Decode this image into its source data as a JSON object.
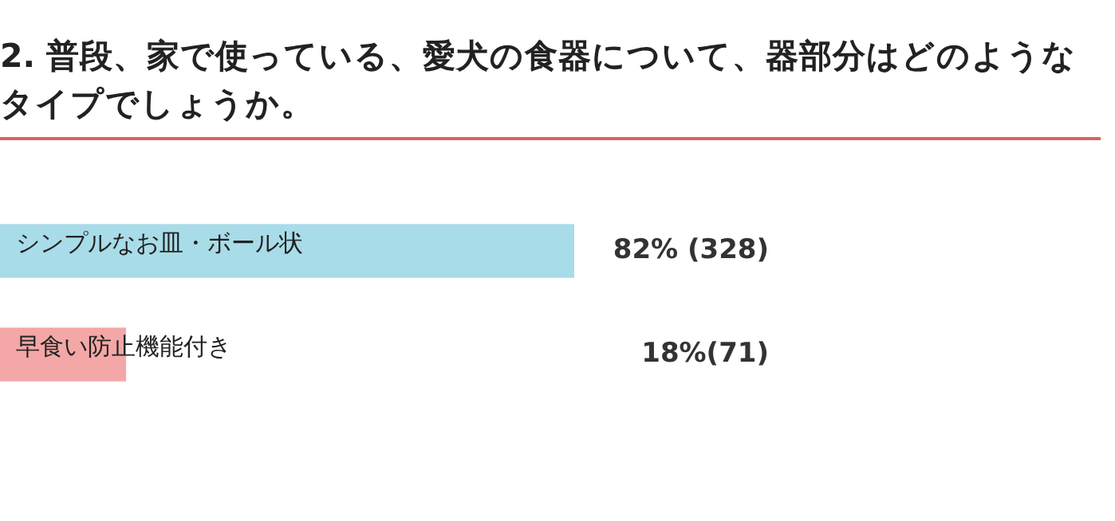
{
  "chart_data": {
    "type": "bar",
    "orientation": "horizontal",
    "title": "2. 普段、家で使っている、愛犬の食器について、器部分はどのようなタイプでしょうか。",
    "categories": [
      "シンプルなお皿・ボール状",
      "早食い防止機能付き"
    ],
    "values": [
      82,
      18
    ],
    "colors": [
      "#a8dce8",
      "#f4a7a7"
    ],
    "value_labels": [
      "82% (328)",
      "18%(71)"
    ],
    "tick_labels": false,
    "legend": false
  }
}
